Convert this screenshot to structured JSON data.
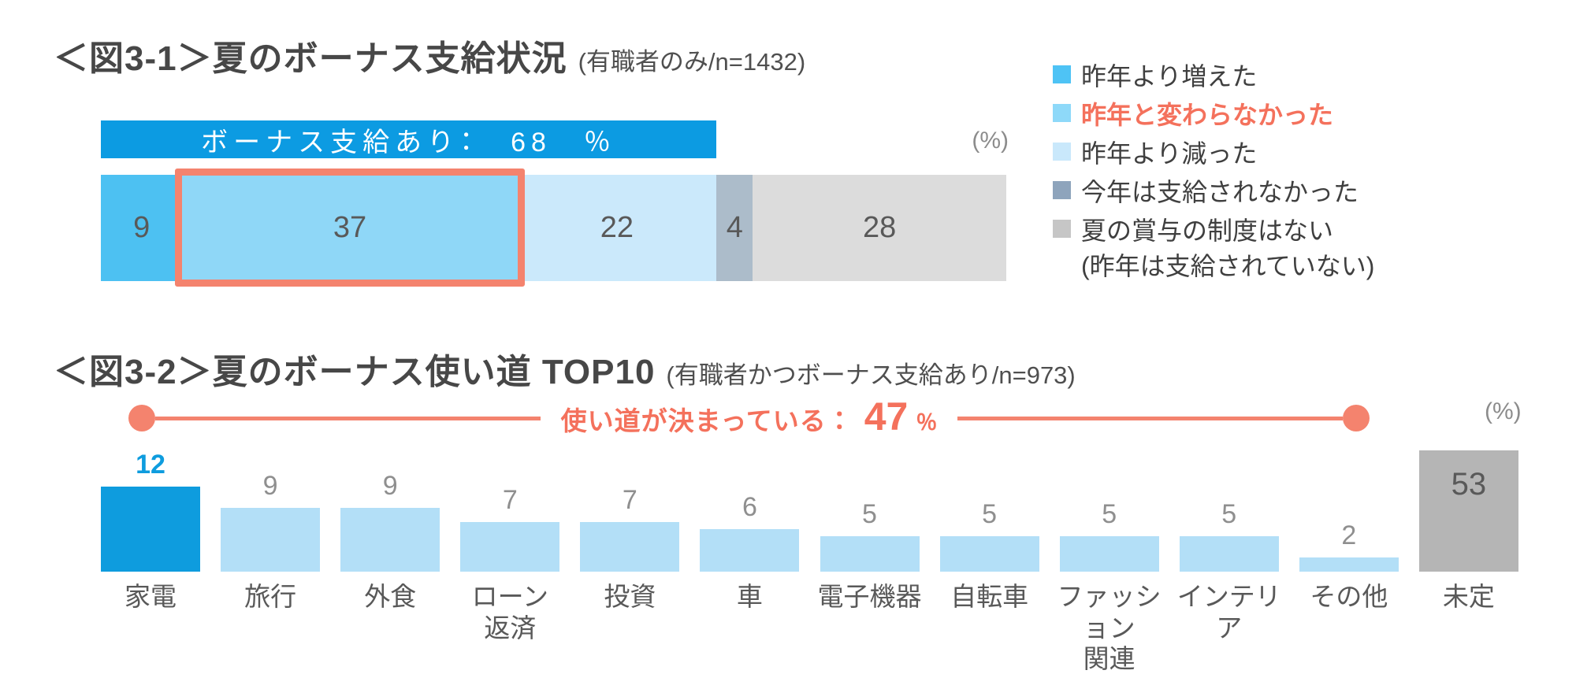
{
  "page": {
    "background": "#ffffff"
  },
  "colors": {
    "banner_blue": "#0c9be2",
    "accent_orange": "#f4836e",
    "accent_orange_text": "#f4715c",
    "strong_bar_blue": "#0e9cde",
    "light_bar_blue": "#b3dff7",
    "undecided_gray": "#b5b5b5",
    "value_gray": "#8f8f8f",
    "label_gray": "#595959",
    "unit_gray": "#8c8c8c"
  },
  "chart_data": [
    {
      "type": "bar",
      "subtype": "stacked-horizontal-100pct",
      "title": "＜図3-1＞夏のボーナス支給状況",
      "subtitle": "(有職者のみ/n=1432)",
      "axis_unit": "(%)",
      "banner": {
        "text": "ボーナス支給あり：　68　％",
        "value": 68
      },
      "categories": [
        "昨年より増えた",
        "昨年と変わらなかった",
        "昨年より減った",
        "今年は支給されなかった",
        "夏の賞与の制度はない(昨年は支給されていない)"
      ],
      "values": [
        9,
        37,
        22,
        4,
        28
      ],
      "segment_colors": [
        "#4dc1f2",
        "#8fd7f7",
        "#cbe9fb",
        "#acbcca",
        "#dcdcdc"
      ],
      "highlighted_segment": 1,
      "legend_position": "right",
      "legend": [
        {
          "label": "昨年より増えた",
          "color": "#4ec3f5",
          "highlight": false
        },
        {
          "label": "昨年と変わらなかった",
          "color": "#8ed9f9",
          "highlight": true
        },
        {
          "label": "昨年より減った",
          "color": "#c9e8fb",
          "highlight": false
        },
        {
          "label": "今年は支給されなかった",
          "color": "#8ea4bc",
          "highlight": false
        },
        {
          "label": "夏の賞与の制度はない",
          "note": "(昨年は支給されていない)",
          "color": "#c6c6c6",
          "highlight": false
        }
      ]
    },
    {
      "type": "bar",
      "subtype": "vertical",
      "title": "＜図3-2＞夏のボーナス使い道 TOP10",
      "subtitle": "(有職者かつボーナス支給あり/n=973)",
      "axis_unit": "(%)",
      "annotation": {
        "label": "使い道が決まっている：",
        "value": "47",
        "unit": "％"
      },
      "categories": [
        "家電",
        "旅行",
        "外食",
        "ローン返済",
        "投資",
        "車",
        "電子機器",
        "自転車",
        "ファッション関連",
        "インテリア",
        "その他",
        "未定"
      ],
      "category_display": [
        "家電",
        "旅行",
        "外食",
        "ローン\n返済",
        "投資",
        "車",
        "電子機器",
        "自転車",
        "ファッション\n関連",
        "インテリア",
        "その他",
        "未定"
      ],
      "values": [
        12,
        9,
        9,
        7,
        7,
        6,
        5,
        5,
        5,
        5,
        2,
        53
      ],
      "bar_colors": {
        "first": "#0e9cde",
        "default": "#b3dff7",
        "last": "#b5b5b5"
      },
      "value_label_colors": {
        "first": "#0e9cde",
        "default": "#8f8f8f",
        "last": "#595959"
      },
      "grid": false
    }
  ]
}
